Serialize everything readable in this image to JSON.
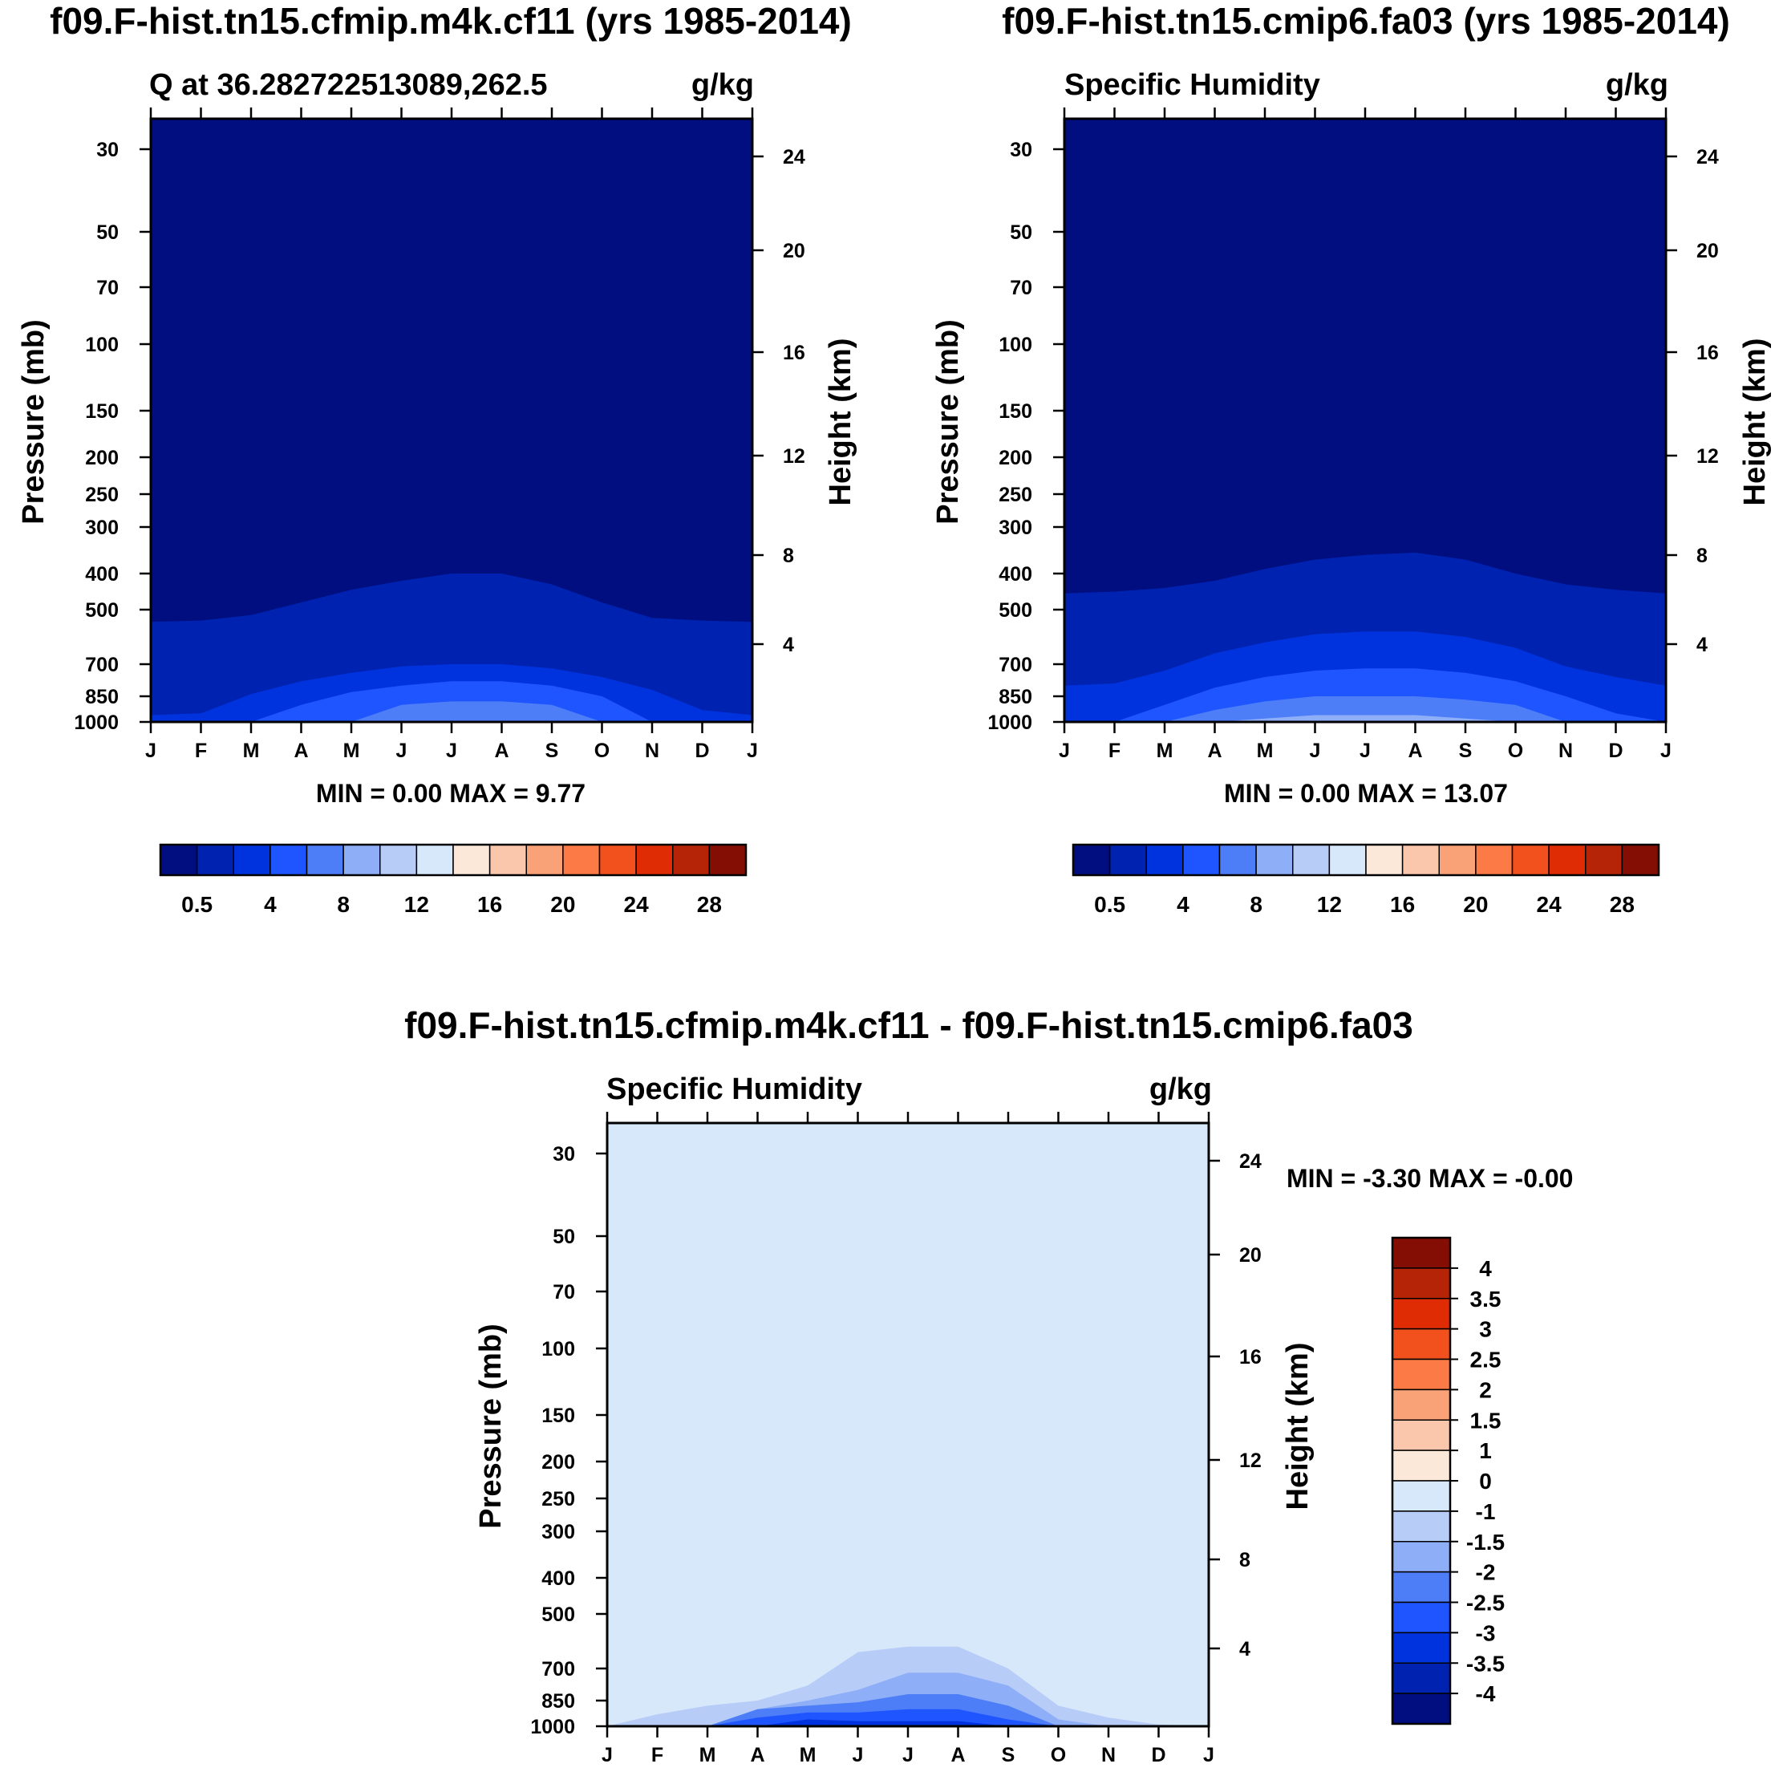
{
  "top_left": {
    "case_title": "f09.F-hist.tn15.cfmip.m4k.cf11 (yrs 1985-2014)",
    "left_label": "Q at 36.282722513089,262.5",
    "right_label": "g/kg",
    "y_label": "Pressure (mb)",
    "y2_label": "Height (km)",
    "stats": "MIN =   0.00 MAX =    9.77"
  },
  "top_right": {
    "case_title": "f09.F-hist.tn15.cmip6.fa03 (yrs 1985-2014)",
    "left_label": "Specific Humidity",
    "right_label": "g/kg",
    "y_label": "Pressure (mb)",
    "y2_label": "Height (km)",
    "stats": "MIN =   0.00 MAX =  13.07"
  },
  "bottom": {
    "case_title": "f09.F-hist.tn15.cfmip.m4k.cf11 - f09.F-hist.tn15.cmip6.fa03",
    "left_label": "Specific Humidity",
    "right_label": "g/kg",
    "y_label": "Pressure (mb)",
    "y2_label": "Height (km)",
    "stats": "MIN =  -3.30 MAX =  -0.00"
  },
  "colors": {
    "abs_scale": [
      "#000e80",
      "#0022b0",
      "#0033dd",
      "#1f55ff",
      "#4d7ef7",
      "#8eaff7",
      "#b8ccf8",
      "#d7e8fb",
      "#fbe8d8",
      "#fbc7ac",
      "#f9a278",
      "#fb7a45",
      "#f2501c",
      "#df2c05",
      "#b52406",
      "#850e04"
    ],
    "diff_scale": [
      "#000e80",
      "#0022b0",
      "#0033dd",
      "#1f55ff",
      "#4d7ef7",
      "#8eaff7",
      "#b8ccf8",
      "#d7e8fb",
      "#fbe8d8",
      "#fbc7ac",
      "#f9a278",
      "#fb7a45",
      "#f2501c",
      "#df2c05",
      "#b52406",
      "#850e04"
    ]
  },
  "chart_data": [
    {
      "type": "heatmap",
      "title": "Q at 36.282722513089,262.5",
      "units": "g/kg",
      "x": [
        "J",
        "F",
        "M",
        "A",
        "M",
        "J",
        "J",
        "A",
        "S",
        "O",
        "N",
        "D",
        "J"
      ],
      "y_ticks": [
        30,
        50,
        70,
        100,
        150,
        200,
        250,
        300,
        400,
        500,
        700,
        850,
        1000
      ],
      "y2_ticks": [
        24,
        20,
        16,
        12,
        8,
        4
      ],
      "ylabel": "Pressure (mb)",
      "y2label": "Height (km)",
      "colorbar_labels": [
        "0.5",
        "4",
        "8",
        "12",
        "16",
        "20",
        "24",
        "28"
      ],
      "min": 0.0,
      "max": 9.77,
      "contour_top_pressure_mb": {
        "level_1": [
          545,
          540,
          520,
          480,
          445,
          420,
          400,
          400,
          430,
          480,
          530,
          540,
          545
        ],
        "level_2": [
          960,
          950,
          840,
          780,
          740,
          710,
          700,
          700,
          720,
          760,
          820,
          930,
          960
        ],
        "level_3": [
          1000,
          1000,
          1000,
          900,
          830,
          800,
          780,
          780,
          800,
          850,
          1000,
          1000,
          1000
        ],
        "level_4": [
          1000,
          1000,
          1000,
          1000,
          1000,
          900,
          880,
          880,
          900,
          1000,
          1000,
          1000,
          1000
        ]
      }
    },
    {
      "type": "heatmap",
      "title": "Specific Humidity",
      "units": "g/kg",
      "x": [
        "J",
        "F",
        "M",
        "A",
        "M",
        "J",
        "J",
        "A",
        "S",
        "O",
        "N",
        "D",
        "J"
      ],
      "y_ticks": [
        30,
        50,
        70,
        100,
        150,
        200,
        250,
        300,
        400,
        500,
        700,
        850,
        1000
      ],
      "y2_ticks": [
        24,
        20,
        16,
        12,
        8,
        4
      ],
      "ylabel": "Pressure (mb)",
      "y2label": "Height (km)",
      "colorbar_labels": [
        "0.5",
        "4",
        "8",
        "12",
        "16",
        "20",
        "24",
        "28"
      ],
      "min": 0.0,
      "max": 13.07,
      "contour_top_pressure_mb": {
        "level_1": [
          455,
          450,
          440,
          420,
          390,
          370,
          360,
          355,
          370,
          400,
          430,
          445,
          455
        ],
        "level_2": [
          800,
          790,
          730,
          660,
          620,
          590,
          580,
          580,
          600,
          640,
          710,
          760,
          800
        ],
        "level_3": [
          1000,
          1000,
          900,
          810,
          760,
          730,
          720,
          720,
          740,
          780,
          850,
          950,
          1000
        ],
        "level_4": [
          1000,
          1000,
          1000,
          930,
          880,
          850,
          850,
          850,
          870,
          900,
          1000,
          1000,
          1000
        ],
        "level_5": [
          1000,
          1000,
          1000,
          1000,
          980,
          960,
          960,
          960,
          980,
          1000,
          1000,
          1000,
          1000
        ]
      }
    },
    {
      "type": "heatmap",
      "title": "Specific Humidity",
      "units": "g/kg",
      "x": [
        "J",
        "F",
        "M",
        "A",
        "M",
        "J",
        "J",
        "A",
        "S",
        "O",
        "N",
        "D",
        "J"
      ],
      "y_ticks": [
        30,
        50,
        70,
        100,
        150,
        200,
        250,
        300,
        400,
        500,
        700,
        850,
        1000
      ],
      "y2_ticks": [
        24,
        20,
        16,
        12,
        8,
        4
      ],
      "ylabel": "Pressure (mb)",
      "y2label": "Height (km)",
      "colorbar_labels": [
        "4",
        "3.5",
        "3",
        "2.5",
        "2",
        "1.5",
        "1",
        "0",
        "-1",
        "-1.5",
        "-2",
        "-2.5",
        "-3",
        "-3.5",
        "-4"
      ],
      "min": -3.3,
      "max": -0.0,
      "contour_top_pressure_mb": {
        "level_-1": [
          1000,
          930,
          880,
          850,
          780,
          640,
          620,
          620,
          700,
          880,
          950,
          990,
          1000
        ],
        "level_-1.5": [
          1000,
          1000,
          1000,
          900,
          850,
          800,
          720,
          720,
          780,
          960,
          1000,
          1000,
          1000
        ],
        "level_-2": [
          1000,
          1000,
          1000,
          900,
          880,
          860,
          820,
          820,
          880,
          1000,
          1000,
          1000,
          1000
        ],
        "level_-2.5": [
          1000,
          1000,
          1000,
          950,
          920,
          920,
          900,
          900,
          960,
          1000,
          1000,
          1000,
          1000
        ],
        "level_-3": [
          1000,
          1000,
          1000,
          1000,
          960,
          970,
          970,
          970,
          1000,
          1000,
          1000,
          1000,
          1000
        ]
      }
    }
  ]
}
